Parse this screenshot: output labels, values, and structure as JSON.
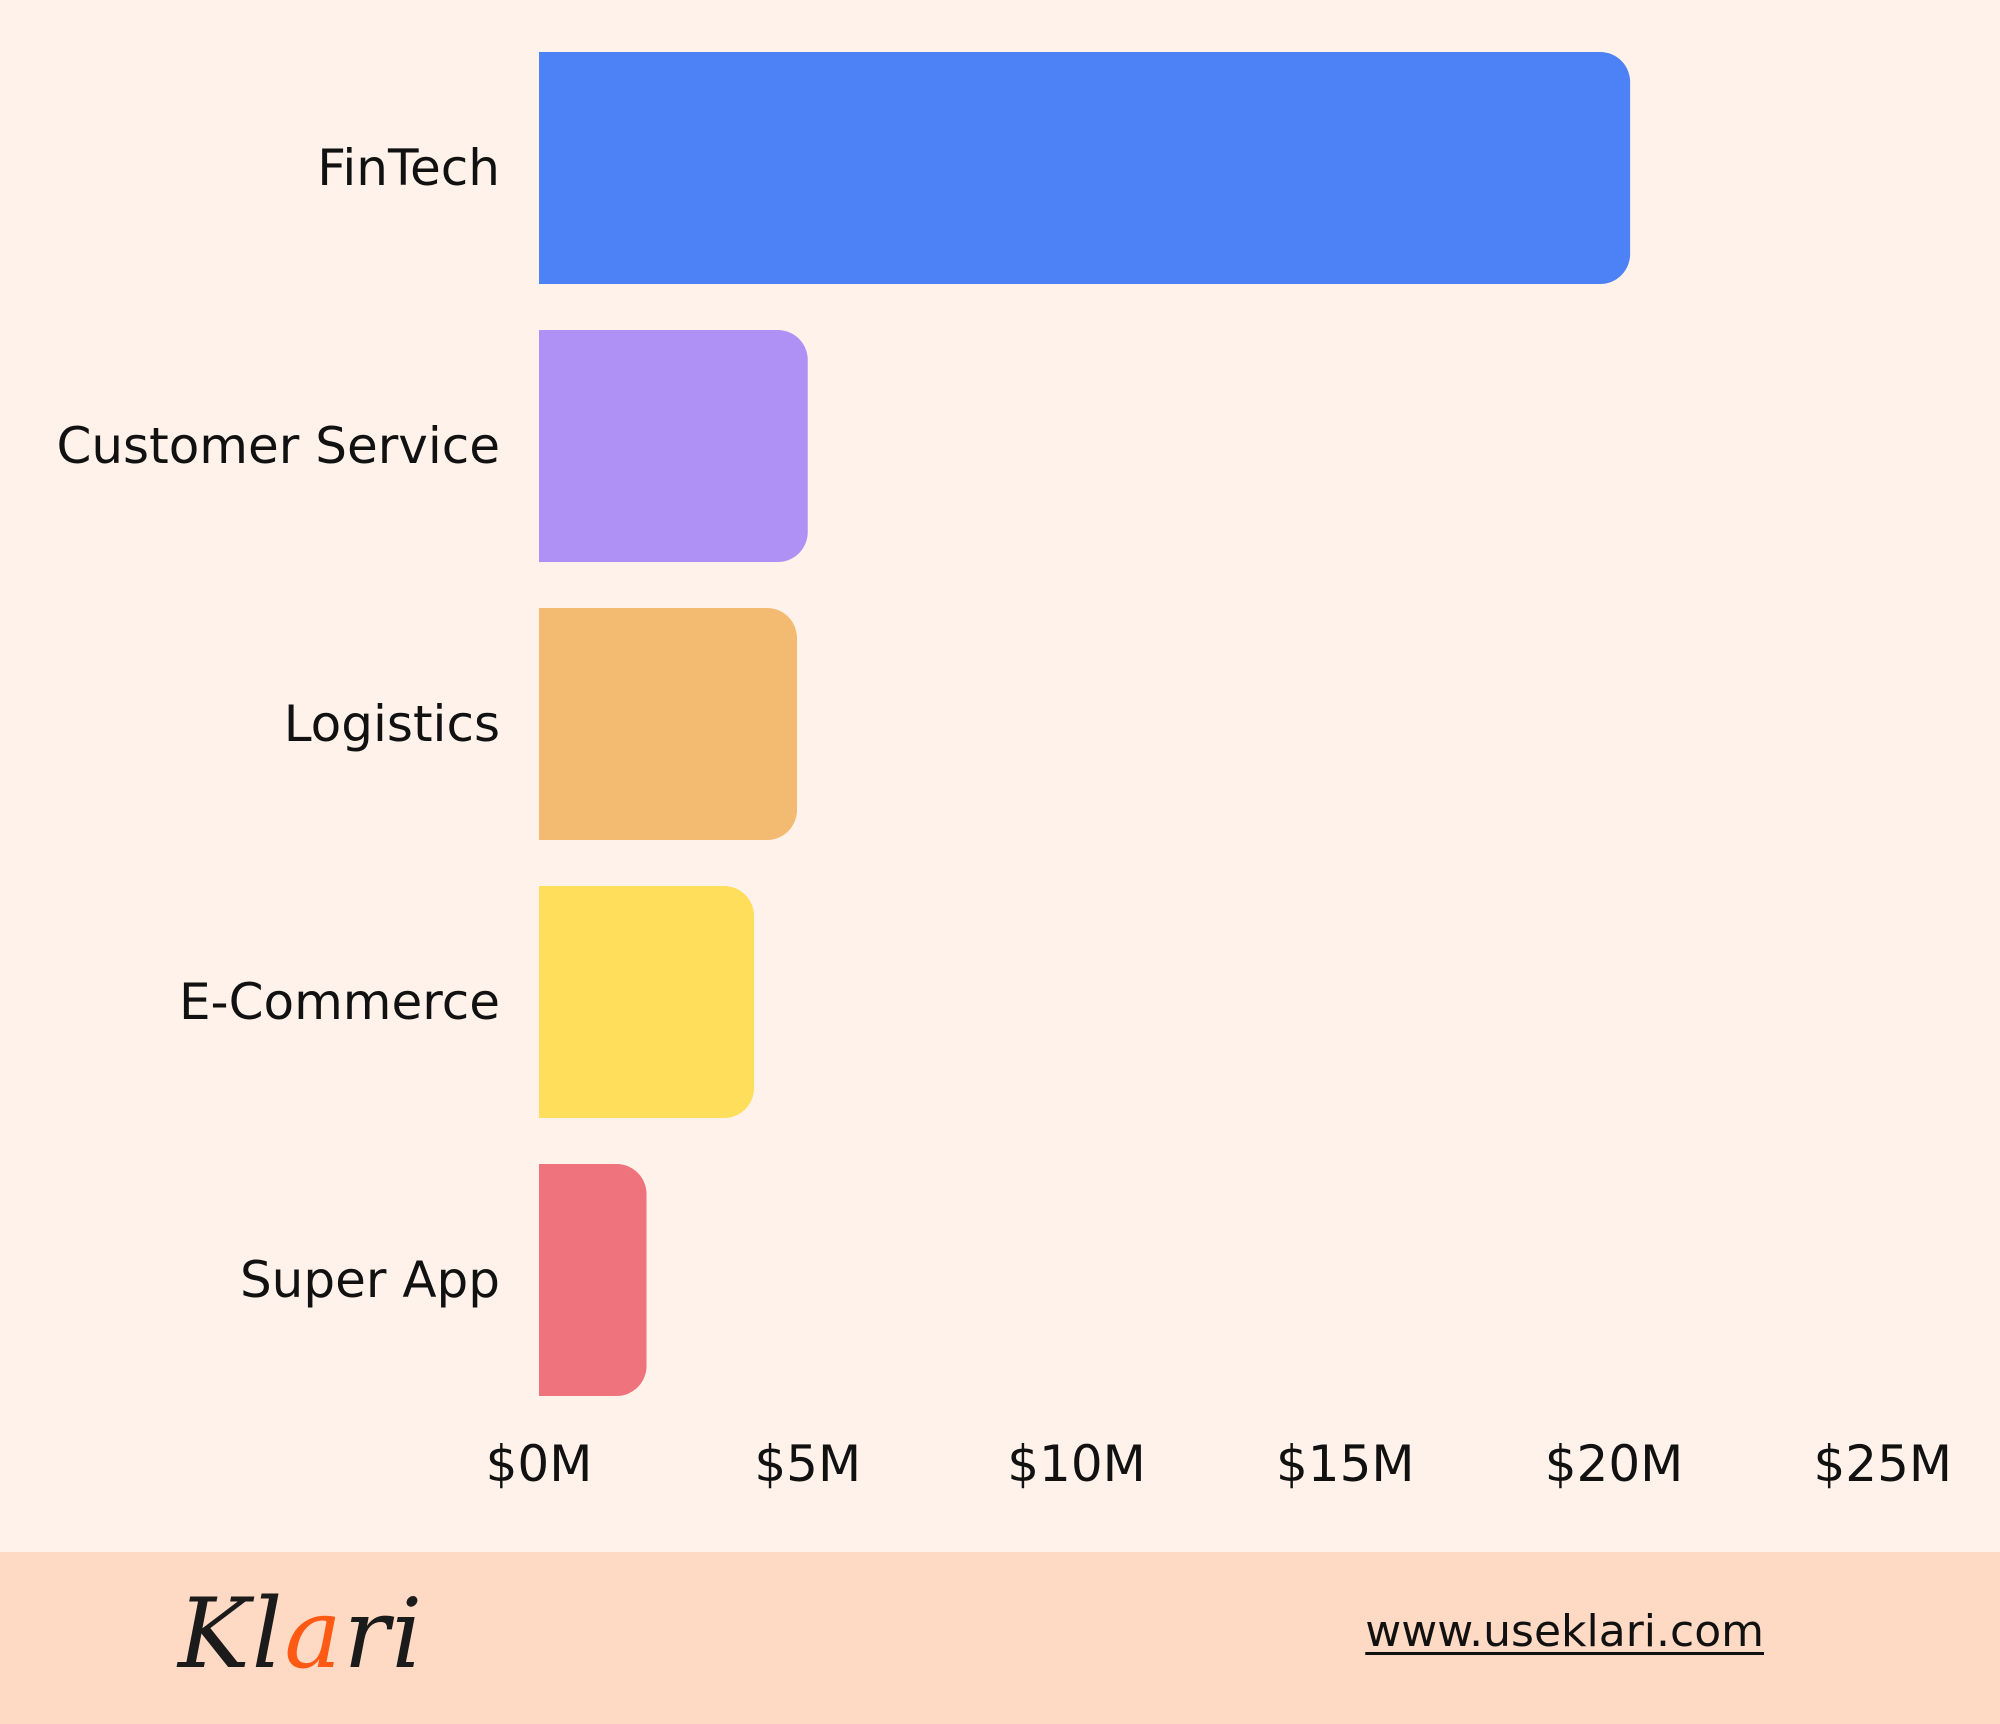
{
  "chart_data": {
    "type": "bar",
    "orientation": "horizontal",
    "categories": [
      "FinTech",
      "Customer Service",
      "Logistics",
      "E-Commerce",
      "Super App"
    ],
    "values": [
      20.3,
      5.0,
      4.8,
      4.0,
      2.0
    ],
    "colors": [
      "#4D82F7",
      "#AF90F5",
      "#F3BA72",
      "#FFDE5C",
      "#EF737C"
    ],
    "xlim": [
      0,
      25
    ],
    "xticks": [
      0,
      5,
      10,
      15,
      20,
      25
    ],
    "xtick_labels": [
      "$0M",
      "$5M",
      "$10M",
      "$15M",
      "$20M",
      "$25M"
    ],
    "grid": false
  },
  "footer": {
    "brand_prefix": "Kl",
    "brand_accent": "a",
    "brand_suffix": "ri",
    "accent_color": "#FF5A14",
    "website": "www.useklari.com"
  }
}
